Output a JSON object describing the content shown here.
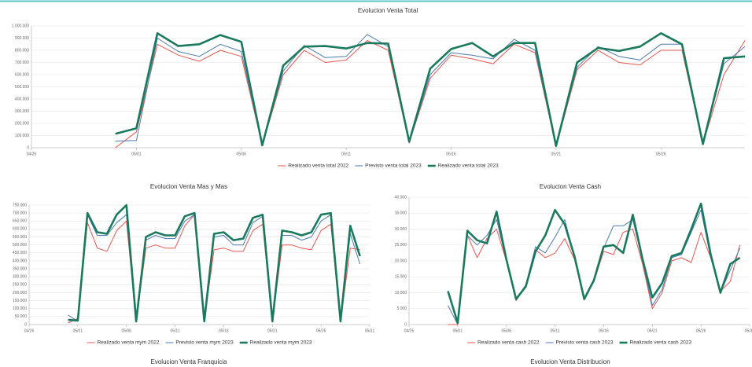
{
  "charts": [
    {
      "type": "line",
      "title": "Evolucion Venta Total",
      "categories": [
        "04/26",
        null,
        null,
        null,
        null,
        "05/01",
        null,
        null,
        null,
        null,
        "05/06",
        null,
        null,
        null,
        null,
        "05/11",
        null,
        null,
        null,
        null,
        "05/16",
        null,
        null,
        null,
        null,
        "05/21",
        null,
        null,
        null,
        null,
        "05/26",
        null,
        null,
        null,
        null
      ],
      "ylim": [
        0,
        1000000
      ],
      "yticks": [
        0,
        {
          "value": 100000,
          "label": "100.000"
        },
        {
          "value": 200000,
          "label": "200.000"
        },
        {
          "value": 300000,
          "label": "300.000"
        },
        {
          "value": 400000,
          "label": "400.000"
        },
        {
          "value": 500000,
          "label": "500.000"
        },
        {
          "value": 600000,
          "label": "600.000"
        },
        {
          "value": 700000,
          "label": "700.000"
        },
        {
          "value": 800000,
          "label": "800.000"
        },
        {
          "value": 900000,
          "label": "900.000"
        },
        {
          "value": 1000000,
          "label": "1.000.000"
        }
      ],
      "grid": true,
      "legend": "bottom",
      "series": [
        {
          "name": "Realizado venta total 2022",
          "color": "#e8554e",
          "values": [
            null,
            null,
            null,
            null,
            0,
            130000,
            850000,
            760000,
            710000,
            800000,
            750000,
            20000,
            600000,
            800000,
            700000,
            720000,
            880000,
            800000,
            40000,
            570000,
            760000,
            730000,
            690000,
            850000,
            780000,
            10000,
            640000,
            800000,
            700000,
            680000,
            800000,
            800000,
            30000,
            600000,
            880000
          ]
        },
        {
          "name": "Previsto venta total 2023",
          "color": "#4a7ab5",
          "values": [
            null,
            null,
            null,
            null,
            55000,
            60000,
            900000,
            790000,
            750000,
            850000,
            790000,
            20000,
            630000,
            840000,
            740000,
            750000,
            930000,
            830000,
            40000,
            600000,
            780000,
            760000,
            730000,
            890000,
            800000,
            15000,
            660000,
            830000,
            750000,
            720000,
            850000,
            850000,
            30000,
            690000,
            830000
          ]
        },
        {
          "name": "Realizado venta total 2023",
          "color": "#1a7a5e",
          "values": [
            null,
            null,
            null,
            null,
            115000,
            160000,
            940000,
            835000,
            850000,
            925000,
            870000,
            20000,
            675000,
            830000,
            835000,
            815000,
            860000,
            855000,
            50000,
            650000,
            810000,
            860000,
            750000,
            860000,
            860000,
            15000,
            700000,
            820000,
            795000,
            830000,
            940000,
            850000,
            30000,
            735000,
            750000
          ]
        }
      ]
    },
    {
      "type": "line",
      "title": "Evolucion Venta Mas y Mas",
      "categories": [
        "04/26",
        null,
        null,
        null,
        null,
        "05/01",
        null,
        null,
        null,
        null,
        "05/06",
        null,
        null,
        null,
        null,
        "05/11",
        null,
        null,
        null,
        null,
        "05/16",
        null,
        null,
        null,
        null,
        "05/21",
        null,
        null,
        null,
        null,
        "05/26",
        null,
        null,
        null,
        null,
        "05/31"
      ],
      "ylim": [
        0,
        750000
      ],
      "yticks": [
        0,
        {
          "value": 50000,
          "label": "50.000"
        },
        {
          "value": 100000,
          "label": "100.000"
        },
        {
          "value": 150000,
          "label": "150.000"
        },
        {
          "value": 200000,
          "label": "200.000"
        },
        {
          "value": 250000,
          "label": "250.000"
        },
        {
          "value": 300000,
          "label": "300.000"
        },
        {
          "value": 350000,
          "label": "350.000"
        },
        {
          "value": 400000,
          "label": "400.000"
        },
        {
          "value": 450000,
          "label": "450.000"
        },
        {
          "value": 500000,
          "label": "500.000"
        },
        {
          "value": 550000,
          "label": "550.000"
        },
        {
          "value": 600000,
          "label": "600.000"
        },
        {
          "value": 650000,
          "label": "650.000"
        },
        {
          "value": 700000,
          "label": "700.000"
        },
        {
          "value": 750000,
          "label": "750.000"
        }
      ],
      "grid": true,
      "legend": "bottom",
      "series": [
        {
          "name": "Realizado venta mym 2022",
          "color": "#e8554e",
          "values": [
            null,
            null,
            null,
            null,
            10000,
            40000,
            640000,
            480000,
            460000,
            590000,
            650000,
            20000,
            480000,
            500000,
            480000,
            480000,
            620000,
            690000,
            20000,
            470000,
            480000,
            460000,
            460000,
            590000,
            630000,
            20000,
            500000,
            500000,
            480000,
            470000,
            590000,
            630000,
            20000,
            480000,
            470000,
            null
          ]
        },
        {
          "name": "Previsto venta mym 2023",
          "color": "#4a7ab5",
          "values": [
            null,
            null,
            null,
            null,
            60000,
            20000,
            690000,
            560000,
            560000,
            640000,
            690000,
            20000,
            530000,
            560000,
            540000,
            540000,
            650000,
            690000,
            20000,
            550000,
            560000,
            500000,
            500000,
            640000,
            680000,
            20000,
            560000,
            560000,
            530000,
            550000,
            650000,
            690000,
            20000,
            570000,
            380000,
            null
          ]
        },
        {
          "name": "Realizado venta mym 2023",
          "color": "#1a7a5e",
          "values": [
            null,
            null,
            null,
            null,
            30000,
            25000,
            700000,
            580000,
            570000,
            690000,
            750000,
            20000,
            550000,
            580000,
            560000,
            560000,
            680000,
            700000,
            20000,
            570000,
            580000,
            530000,
            540000,
            670000,
            690000,
            20000,
            590000,
            580000,
            560000,
            580000,
            690000,
            700000,
            20000,
            620000,
            430000,
            null
          ]
        }
      ]
    },
    {
      "type": "line",
      "title": "Evolucion Venta Cash",
      "categories": [
        "04/26",
        null,
        null,
        null,
        null,
        "05/01",
        null,
        null,
        null,
        null,
        "05/06",
        null,
        null,
        null,
        null,
        "05/11",
        null,
        null,
        null,
        null,
        "05/16",
        null,
        null,
        null,
        null,
        "05/21",
        null,
        null,
        null,
        null,
        "05/26",
        null,
        null,
        null,
        null,
        "05/31"
      ],
      "ylim": [
        0,
        40000
      ],
      "yticks": [
        0,
        {
          "value": 5000,
          "label": "5.000"
        },
        {
          "value": 10000,
          "label": "10.000"
        },
        {
          "value": 15000,
          "label": "15.000"
        },
        {
          "value": 20000,
          "label": "20.000"
        },
        {
          "value": 25000,
          "label": "25.000"
        },
        {
          "value": 30000,
          "label": "30.000"
        },
        {
          "value": 35000,
          "label": "35.000"
        },
        {
          "value": 40000,
          "label": "40.000"
        }
      ],
      "grid": true,
      "legend": "bottom",
      "series": [
        {
          "name": "Realizado venta cash 2022",
          "color": "#e8554e",
          "values": [
            null,
            null,
            null,
            null,
            0,
            0,
            28000,
            21000,
            27000,
            30000,
            20000,
            7500,
            12000,
            23500,
            21000,
            22500,
            27000,
            20500,
            8000,
            13500,
            23000,
            22000,
            29000,
            30000,
            19000,
            5000,
            10000,
            20000,
            21000,
            19500,
            29000,
            21000,
            10500,
            13500,
            25000,
            null
          ]
        },
        {
          "name": "Previsto venta cash 2023",
          "color": "#4a7ab5",
          "values": [
            null,
            null,
            null,
            null,
            6000,
            0,
            28000,
            25000,
            28000,
            33000,
            20000,
            8000,
            12500,
            24500,
            22500,
            27500,
            33000,
            21000,
            8000,
            13500,
            24000,
            31000,
            31000,
            33000,
            20000,
            6000,
            11000,
            21000,
            22000,
            29000,
            36000,
            21000,
            10000,
            17000,
            24000,
            null
          ]
        },
        {
          "name": "Realizado venta cash 2023",
          "color": "#1a7a5e",
          "values": [
            null,
            null,
            null,
            null,
            10500,
            500,
            29500,
            26500,
            25500,
            35500,
            20500,
            8000,
            12000,
            23000,
            28000,
            36000,
            31500,
            21500,
            8000,
            14000,
            24500,
            25000,
            22500,
            34500,
            20500,
            8500,
            13000,
            21500,
            22500,
            30000,
            38000,
            22000,
            10000,
            19000,
            21000,
            null
          ]
        }
      ]
    }
  ],
  "more_titles": [
    "Evolucion Venta Franquicia",
    "Evolucion Venta Distribucion"
  ]
}
